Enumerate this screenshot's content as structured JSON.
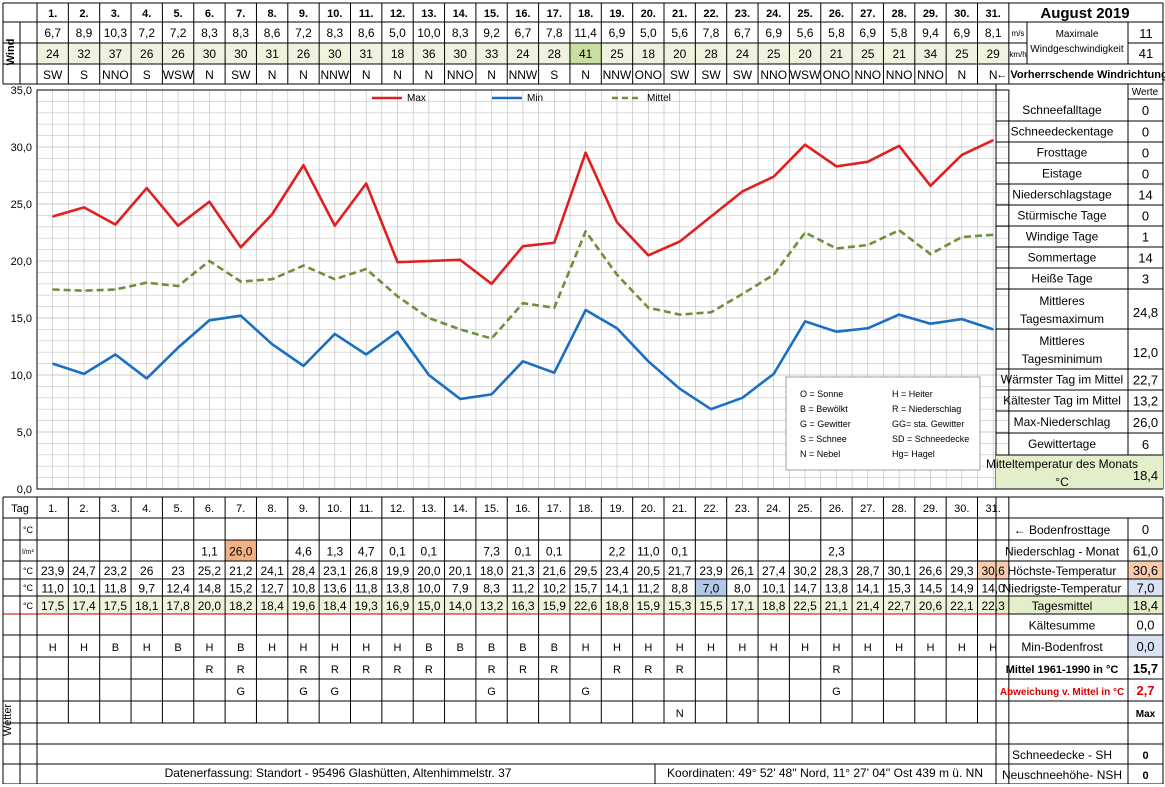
{
  "header": {
    "title": "August 2019",
    "wind_label": "Wind",
    "unit_ms": "m/s",
    "unit_kmh": "km/h",
    "max_wind_label_1": "Maximale",
    "max_wind_label_2": "Windgeschwindigkeit",
    "max_wind_ms": "11",
    "max_wind_kmh": "41",
    "prevailing_label": "← Vorherrschende Windrichtung"
  },
  "days": [
    "1.",
    "2.",
    "3.",
    "4.",
    "5.",
    "6.",
    "7.",
    "8.",
    "9.",
    "10.",
    "11.",
    "12.",
    "13.",
    "14.",
    "15.",
    "16.",
    "17.",
    "18.",
    "19.",
    "20.",
    "21.",
    "22.",
    "23.",
    "24.",
    "25.",
    "26.",
    "27.",
    "28.",
    "29.",
    "30.",
    "31."
  ],
  "wind": {
    "ms": [
      "6,7",
      "8,9",
      "10,3",
      "7,2",
      "7,2",
      "8,3",
      "8,3",
      "8,6",
      "7,2",
      "8,3",
      "8,6",
      "5,0",
      "10,0",
      "8,3",
      "9,2",
      "6,7",
      "7,8",
      "11,4",
      "6,9",
      "5,0",
      "5,6",
      "7,8",
      "6,7",
      "6,9",
      "5,6",
      "5,8",
      "6,9",
      "5,8",
      "9,4",
      "6,9",
      "8,1"
    ],
    "kmh": [
      "24",
      "32",
      "37",
      "26",
      "26",
      "30",
      "30",
      "31",
      "26",
      "30",
      "31",
      "18",
      "36",
      "30",
      "33",
      "24",
      "28",
      "41",
      "25",
      "18",
      "20",
      "28",
      "24",
      "25",
      "20",
      "21",
      "25",
      "21",
      "34",
      "25",
      "29"
    ],
    "dir": [
      "SW",
      "S",
      "NNO",
      "S",
      "WSW",
      "N",
      "SW",
      "N",
      "N",
      "NNW",
      "N",
      "N",
      "N",
      "NNO",
      "N",
      "NNW",
      "S",
      "N",
      "NNW",
      "ONO",
      "SW",
      "SW",
      "SW",
      "NNO",
      "WSW",
      "ONO",
      "NNO",
      "NNO",
      "NNO",
      "N",
      "N"
    ]
  },
  "chart_data": {
    "type": "line",
    "x": [
      1,
      2,
      3,
      4,
      5,
      6,
      7,
      8,
      9,
      10,
      11,
      12,
      13,
      14,
      15,
      16,
      17,
      18,
      19,
      20,
      21,
      22,
      23,
      24,
      25,
      26,
      27,
      28,
      29,
      30,
      31
    ],
    "series": [
      {
        "name": "Max",
        "color": "#e02020",
        "values": [
          23.9,
          24.7,
          23.2,
          26.4,
          23.1,
          25.2,
          21.2,
          24.1,
          28.4,
          23.1,
          26.8,
          19.9,
          20.0,
          20.1,
          18.0,
          21.3,
          21.6,
          29.5,
          23.4,
          20.5,
          21.7,
          23.9,
          26.1,
          27.4,
          30.2,
          28.3,
          28.7,
          30.1,
          26.6,
          29.3,
          30.6
        ]
      },
      {
        "name": "Min",
        "color": "#1a6fc4",
        "values": [
          11.0,
          10.1,
          11.8,
          9.7,
          12.4,
          14.8,
          15.2,
          12.7,
          10.8,
          13.6,
          11.8,
          13.8,
          10.0,
          7.9,
          8.3,
          11.2,
          10.2,
          15.7,
          14.1,
          11.2,
          8.8,
          7.0,
          8.0,
          10.1,
          14.7,
          13.8,
          14.1,
          15.3,
          14.5,
          14.9,
          14.0
        ]
      },
      {
        "name": "Mittel",
        "color": "#6f8f3a",
        "values": [
          17.5,
          17.4,
          17.5,
          18.1,
          17.8,
          20.0,
          18.2,
          18.4,
          19.6,
          18.4,
          19.3,
          16.9,
          15.0,
          14.0,
          13.2,
          16.3,
          15.9,
          22.6,
          18.8,
          15.9,
          15.3,
          15.5,
          17.1,
          18.8,
          22.5,
          21.1,
          21.4,
          22.7,
          20.6,
          22.1,
          22.3
        ]
      }
    ],
    "ylim": [
      0,
      35
    ],
    "yticks": [
      "0,0",
      "5,0",
      "10,0",
      "15,0",
      "20,0",
      "25,0",
      "30,0",
      "35,0"
    ],
    "legend": [
      "Max",
      "Min",
      "Mittel"
    ],
    "legend_position": "top"
  },
  "key": [
    [
      "O = Sonne",
      "H = Heiter"
    ],
    [
      "B = Bewölkt",
      "R = Niederschlag"
    ],
    [
      "G = Gewitter",
      "GG= sta. Gewitter"
    ],
    [
      "S = Schnee",
      "SD = Schneedecke"
    ],
    [
      "N = Nebel",
      "Hg= Hagel"
    ]
  ],
  "stats": {
    "werte_label": "Werte",
    "rows": [
      {
        "label": "Schneefalltage",
        "value": "0"
      },
      {
        "label": "Schneedeckentage",
        "value": "0"
      },
      {
        "label": "Frosttage",
        "value": "0"
      },
      {
        "label": "Eistage",
        "value": "0"
      },
      {
        "label": "Niederschlagstage",
        "value": "14"
      },
      {
        "label": "Stürmische Tage",
        "value": "0"
      },
      {
        "label": "Windige Tage",
        "value": "1"
      },
      {
        "label": "Sommertage",
        "value": "14"
      },
      {
        "label": "Heiße Tage",
        "value": "3"
      },
      {
        "label": "Mittleres Tagesmaximum",
        "value": "24,8"
      },
      {
        "label": "Mittleres Tagesminimum",
        "value": "12,0"
      },
      {
        "label": "Wärmster Tag im Mittel",
        "value": "22,7"
      },
      {
        "label": "Kältester Tag im Mittel",
        "value": "13,2"
      },
      {
        "label": "Max-Niederschlag",
        "value": "26,0"
      },
      {
        "label": "Gewittertage",
        "value": "6"
      },
      {
        "label": "Mitteltemperatur des Monats °C",
        "value": "18,4"
      }
    ]
  },
  "bottom": {
    "tag_label": "Tag",
    "unit_c": "°C",
    "unit_lm2": "l/m²",
    "wetter_label": "Wetter",
    "precip": [
      "",
      "",
      "",
      "",
      "",
      "1,1",
      "26,0",
      "",
      "4,6",
      "1,3",
      "4,7",
      "0,1",
      "0,1",
      "",
      "7,3",
      "0,1",
      "0,1",
      "",
      "2,2",
      "11,0",
      "0,1",
      "",
      "",
      "",
      "",
      "2,3",
      "",
      "",
      "",
      "",
      ""
    ],
    "tmax": [
      "23,9",
      "24,7",
      "23,2",
      "26",
      "23",
      "25,2",
      "21,2",
      "24,1",
      "28,4",
      "23,1",
      "26,8",
      "19,9",
      "20,0",
      "20,1",
      "18,0",
      "21,3",
      "21,6",
      "29,5",
      "23,4",
      "20,5",
      "21,7",
      "23,9",
      "26,1",
      "27,4",
      "30,2",
      "28,3",
      "28,7",
      "30,1",
      "26,6",
      "29,3",
      "30,6"
    ],
    "tmin": [
      "11,0",
      "10,1",
      "11,8",
      "9,7",
      "12,4",
      "14,8",
      "15,2",
      "12,7",
      "10,8",
      "13,6",
      "11,8",
      "13,8",
      "10,0",
      "7,9",
      "8,3",
      "11,2",
      "10,2",
      "15,7",
      "14,1",
      "11,2",
      "8,8",
      "7,0",
      "8,0",
      "10,1",
      "14,7",
      "13,8",
      "14,1",
      "15,3",
      "14,5",
      "14,9",
      "14,0"
    ],
    "tmean": [
      "17,5",
      "17,4",
      "17,5",
      "18,1",
      "17,8",
      "20,0",
      "18,2",
      "18,4",
      "19,6",
      "18,4",
      "19,3",
      "16,9",
      "15,0",
      "14,0",
      "13,2",
      "16,3",
      "15,9",
      "22,6",
      "18,8",
      "15,9",
      "15,3",
      "15,5",
      "17,1",
      "18,8",
      "22,5",
      "21,1",
      "21,4",
      "22,7",
      "20,6",
      "22,1",
      "22,3"
    ],
    "w1": [
      "H",
      "H",
      "B",
      "H",
      "B",
      "H",
      "B",
      "H",
      "H",
      "H",
      "H",
      "H",
      "B",
      "B",
      "B",
      "B",
      "B",
      "H",
      "H",
      "H",
      "H",
      "H",
      "H",
      "H",
      "H",
      "H",
      "H",
      "H",
      "H",
      "H",
      "H"
    ],
    "w2": [
      "",
      "",
      "",
      "",
      "",
      "R",
      "R",
      "",
      "R",
      "R",
      "R",
      "R",
      "R",
      "",
      "R",
      "R",
      "R",
      "",
      "R",
      "R",
      "R",
      "",
      "",
      "",
      "",
      "R",
      "",
      "",
      "",
      "",
      ""
    ],
    "w3": [
      "",
      "",
      "",
      "",
      "",
      "",
      "G",
      "",
      "G",
      "G",
      "",
      "",
      "",
      "",
      "G",
      "",
      "",
      "G",
      "",
      "",
      "",
      "",
      "",
      "",
      "",
      "G",
      "",
      "",
      "",
      "",
      ""
    ],
    "w4": [
      "",
      "",
      "",
      "",
      "",
      "",
      "",
      "",
      "",
      "",
      "",
      "",
      "",
      "",
      "",
      "",
      "",
      "",
      "",
      "",
      "N",
      "",
      "",
      "",
      "",
      "",
      "",
      "",
      "",
      "",
      ""
    ],
    "right": [
      {
        "label": "← Bodenfrosttage",
        "value": "0"
      },
      {
        "label": "Niederschlag - Monat",
        "value": "61,0"
      },
      {
        "label": "Höchste-Temperatur",
        "value": "30,6"
      },
      {
        "label": "Niedrigste-Temperatur",
        "value": "7,0"
      },
      {
        "label": "Tagesmittel",
        "value": "18,4"
      },
      {
        "label": "Kältesumme",
        "value": "0,0"
      },
      {
        "label": "Min-Bodenfrost",
        "value": "0,0"
      },
      {
        "label": "Mittel 1961-1990 in °C",
        "value": "15,7"
      },
      {
        "label": "Abweichung v. Mittel in °C",
        "value": "2,7"
      },
      {
        "label": "",
        "value": "Max"
      },
      {
        "label": "Schneedecke -   SH",
        "value": "0"
      },
      {
        "label": "Neuschneehöhe- NSH",
        "value": "0"
      }
    ]
  },
  "footer": {
    "left": "Datenerfassung:  Standort -   95496  Glashütten, Altenhimmelstr. 37",
    "right": "Koordinaten:  49° 52' 48'' Nord,    11° 27' 04'' Ost    439 m ü. NN"
  }
}
